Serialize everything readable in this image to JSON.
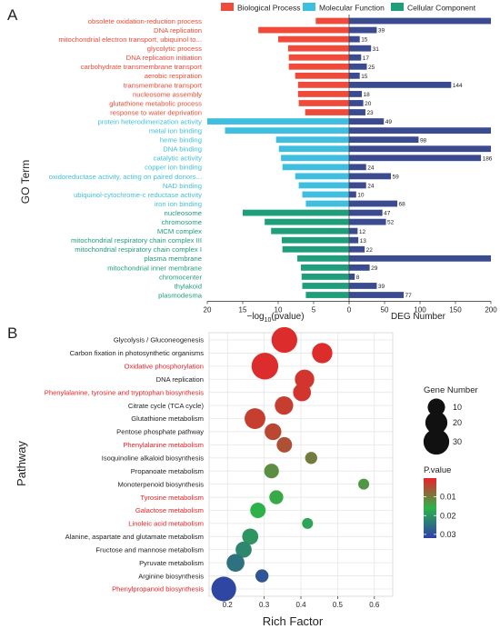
{
  "chart_data": [
    {
      "type": "bar",
      "panel_label": "A",
      "ylabel": "GO Term",
      "legend": [
        {
          "name": "Biological Process",
          "color": "#f04b3a"
        },
        {
          "name": "Molecular Function",
          "color": "#3fbfe0"
        },
        {
          "name": "Cellular Component",
          "color": "#1f9e7c"
        }
      ],
      "left_axis": {
        "xlabel_prefix": "−log",
        "xlabel_sub": "10",
        "xlabel_suffix": "(pvalue)",
        "xlim": [
          20,
          0
        ],
        "ticks": [
          20,
          15,
          10,
          5,
          0
        ]
      },
      "right_axis": {
        "xlabel": "DEG Number",
        "xlim": [
          0,
          200
        ],
        "ticks": [
          0,
          50,
          100,
          150,
          200
        ]
      },
      "bar_colors": {
        "deg": "#3b4b8f"
      },
      "categories": [
        {
          "term": "obsolete oxidation-reduction process",
          "group": "Biological Process",
          "logp": 4.7,
          "deg": 200
        },
        {
          "term": "DNA replication",
          "group": "Biological Process",
          "logp": 12.8,
          "deg": 39
        },
        {
          "term": "mitochondrial electron transport, ubiquinol to...",
          "group": "Biological Process",
          "logp": 10.0,
          "deg": 15
        },
        {
          "term": "glycolytic process",
          "group": "Biological Process",
          "logp": 8.6,
          "deg": 31
        },
        {
          "term": "DNA replication initiation",
          "group": "Biological Process",
          "logp": 8.5,
          "deg": 17
        },
        {
          "term": "carbohydrate transmembrane transport",
          "group": "Biological Process",
          "logp": 8.5,
          "deg": 25
        },
        {
          "term": "aerobic respiration",
          "group": "Biological Process",
          "logp": 7.6,
          "deg": 15
        },
        {
          "term": "transmembrane transport",
          "group": "Biological Process",
          "logp": 7.2,
          "deg": 144
        },
        {
          "term": "nucleosome assembly",
          "group": "Biological Process",
          "logp": 7.2,
          "deg": 18
        },
        {
          "term": "glutathione metabolic process",
          "group": "Biological Process",
          "logp": 7.1,
          "deg": 20
        },
        {
          "term": "response to water deprivation",
          "group": "Biological Process",
          "logp": 6.2,
          "deg": 23
        },
        {
          "term": "protein heterodimerization activity",
          "group": "Molecular Function",
          "logp": 20.0,
          "deg": 49
        },
        {
          "term": "metal ion binding",
          "group": "Molecular Function",
          "logp": 17.5,
          "deg": 200
        },
        {
          "term": "heme binding",
          "group": "Molecular Function",
          "logp": 10.3,
          "deg": 98
        },
        {
          "term": "DNA binding",
          "group": "Molecular Function",
          "logp": 9.9,
          "deg": 200
        },
        {
          "term": "catalytic activity",
          "group": "Molecular Function",
          "logp": 9.6,
          "deg": 186
        },
        {
          "term": "copper ion binding",
          "group": "Molecular Function",
          "logp": 9.4,
          "deg": 24
        },
        {
          "term": "oxidoreductase activity, acting on paired donors...",
          "group": "Molecular Function",
          "logp": 7.6,
          "deg": 59
        },
        {
          "term": "NAD binding",
          "group": "Molecular Function",
          "logp": 7.1,
          "deg": 24
        },
        {
          "term": "ubiquinol-cytochrome-c reductase activity",
          "group": "Molecular Function",
          "logp": 6.6,
          "deg": 10
        },
        {
          "term": "iron ion binding",
          "group": "Molecular Function",
          "logp": 6.1,
          "deg": 68
        },
        {
          "term": "nucleosome",
          "group": "Cellular Component",
          "logp": 15.0,
          "deg": 47
        },
        {
          "term": "chromosome",
          "group": "Cellular Component",
          "logp": 11.9,
          "deg": 52
        },
        {
          "term": "MCM complex",
          "group": "Cellular Component",
          "logp": 11.0,
          "deg": 12
        },
        {
          "term": "mitochondrial respiratory chain complex III",
          "group": "Cellular Component",
          "logp": 9.5,
          "deg": 13
        },
        {
          "term": "mitochondrial respiratory chain complex I",
          "group": "Cellular Component",
          "logp": 9.4,
          "deg": 22
        },
        {
          "term": "plasma membrane",
          "group": "Cellular Component",
          "logp": 7.3,
          "deg": 200
        },
        {
          "term": "mitochondrial inner membrane",
          "group": "Cellular Component",
          "logp": 6.8,
          "deg": 29
        },
        {
          "term": "chromocenter",
          "group": "Cellular Component",
          "logp": 6.7,
          "deg": 8
        },
        {
          "term": "thylakoid",
          "group": "Cellular Component",
          "logp": 6.6,
          "deg": 39
        },
        {
          "term": "plasmodesma",
          "group": "Cellular Component",
          "logp": 6.1,
          "deg": 77
        }
      ]
    },
    {
      "type": "scatter",
      "panel_label": "B",
      "xlabel": "Rich Factor",
      "ylabel": "Pathway",
      "xlim": [
        0.15,
        0.65
      ],
      "xticks": [
        "0.2",
        "0.3",
        "0.4",
        "0.5",
        "0.6"
      ],
      "grid": true,
      "highlight_color": "#e8232a",
      "size_legend": {
        "title": "Gene Number",
        "values": [
          10,
          20,
          30
        ]
      },
      "color_legend": {
        "title": "P.value",
        "ticks": [
          "0.01",
          "0.02",
          "0.03"
        ],
        "min": 0.0,
        "max": 0.032,
        "colors": [
          "#e8232a",
          "#2db24a",
          "#2f3fa8"
        ]
      },
      "points": [
        {
          "pathway": "Glycolysis / Gluconeogenesis",
          "highlight": false,
          "x": 0.355,
          "genes": 30,
          "p": 0.001
        },
        {
          "pathway": "Carbon fixation in photosynthetic organisms",
          "highlight": false,
          "x": 0.458,
          "genes": 16,
          "p": 0.001
        },
        {
          "pathway": "Oxidative phosphorylation",
          "highlight": true,
          "x": 0.302,
          "genes": 33,
          "p": 0.001
        },
        {
          "pathway": "DNA replication",
          "highlight": false,
          "x": 0.41,
          "genes": 14,
          "p": 0.002
        },
        {
          "pathway": "Phenylalanine, tyrosine and tryptophan biosynthesis",
          "highlight": true,
          "x": 0.403,
          "genes": 11,
          "p": 0.002
        },
        {
          "pathway": "Citrate cycle (TCA cycle)",
          "highlight": false,
          "x": 0.354,
          "genes": 12,
          "p": 0.003
        },
        {
          "pathway": "Glutathione metabolism",
          "highlight": false,
          "x": 0.275,
          "genes": 17,
          "p": 0.003
        },
        {
          "pathway": "Pentose phosphate pathway",
          "highlight": false,
          "x": 0.324,
          "genes": 9,
          "p": 0.004
        },
        {
          "pathway": "Phenylalanine metabolism",
          "highlight": true,
          "x": 0.355,
          "genes": 7,
          "p": 0.005
        },
        {
          "pathway": "Isoquinoline alkaloid biosynthesis",
          "highlight": false,
          "x": 0.428,
          "genes": 3,
          "p": 0.01
        },
        {
          "pathway": "Propanoate metabolism",
          "highlight": false,
          "x": 0.32,
          "genes": 6,
          "p": 0.012
        },
        {
          "pathway": "Monoterpenoid biosynthesis",
          "highlight": false,
          "x": 0.571,
          "genes": 2,
          "p": 0.013
        },
        {
          "pathway": "Tyrosine metabolism",
          "highlight": true,
          "x": 0.333,
          "genes": 5,
          "p": 0.015
        },
        {
          "pathway": "Galactose metabolism",
          "highlight": true,
          "x": 0.283,
          "genes": 7,
          "p": 0.016
        },
        {
          "pathway": "Linoleic acid metabolism",
          "highlight": true,
          "x": 0.418,
          "genes": 2,
          "p": 0.018
        },
        {
          "pathway": "Alanine, aspartate and glutamate metabolism",
          "highlight": false,
          "x": 0.262,
          "genes": 8,
          "p": 0.02
        },
        {
          "pathway": "Fructose and mannose metabolism",
          "highlight": false,
          "x": 0.244,
          "genes": 8,
          "p": 0.022
        },
        {
          "pathway": "Pyruvate metabolism",
          "highlight": false,
          "x": 0.222,
          "genes": 11,
          "p": 0.025
        },
        {
          "pathway": "Arginine biosynthesis",
          "highlight": false,
          "x": 0.294,
          "genes": 4,
          "p": 0.029
        },
        {
          "pathway": "Phenylpropanoid biosynthesis",
          "highlight": true,
          "x": 0.19,
          "genes": 27,
          "p": 0.031
        }
      ]
    }
  ]
}
